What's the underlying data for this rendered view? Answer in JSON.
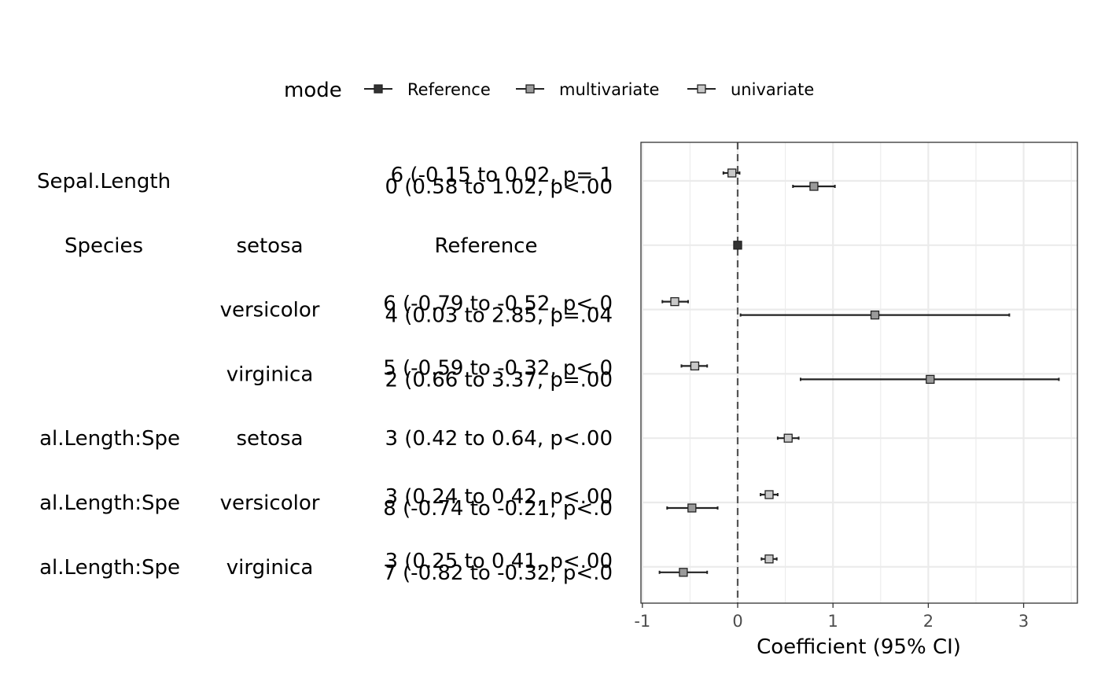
{
  "chart_data": {
    "type": "forest",
    "legend": {
      "title": "mode",
      "position": "top",
      "items": [
        {
          "label": "Reference",
          "fill": "#333333"
        },
        {
          "label": "multivariate",
          "fill": "#9a9a9a"
        },
        {
          "label": "univariate",
          "fill": "#c8c8c8"
        }
      ]
    },
    "xlabel": "Coefficient (95% CI)",
    "xlim": [
      -1,
      3.6
    ],
    "xticks": [
      "-1",
      "0",
      "1",
      "2",
      "3"
    ],
    "reference_line": 0,
    "grid": true,
    "rows": [
      {
        "variable": "Sepal.Length",
        "level": "",
        "texts": [
          "6 (-0.15 to 0.02, p= 1",
          "0 (0.58 to 1.02, p<.00"
        ],
        "points": [
          {
            "mode": "univariate",
            "est": -0.06,
            "lo": -0.15,
            "hi": 0.02
          },
          {
            "mode": "multivariate",
            "est": 0.8,
            "lo": 0.58,
            "hi": 1.02
          }
        ]
      },
      {
        "variable": "Species",
        "level": "setosa",
        "texts": [
          "Reference"
        ],
        "points": [
          {
            "mode": "Reference",
            "est": 0
          }
        ]
      },
      {
        "variable": "",
        "level": "versicolor",
        "texts": [
          "6 (-0.79 to -0.52, p<.0",
          "4 (0.03 to 2.85, p=.04"
        ],
        "points": [
          {
            "mode": "univariate",
            "est": -0.66,
            "lo": -0.79,
            "hi": -0.52
          },
          {
            "mode": "multivariate",
            "est": 1.44,
            "lo": 0.03,
            "hi": 2.85
          }
        ]
      },
      {
        "variable": "",
        "level": "virginica",
        "texts": [
          "5 (-0.59 to -0.32, p<.0",
          "2 (0.66 to 3.37, p=.00"
        ],
        "points": [
          {
            "mode": "univariate",
            "est": -0.45,
            "lo": -0.59,
            "hi": -0.32
          },
          {
            "mode": "multivariate",
            "est": 2.02,
            "lo": 0.66,
            "hi": 3.37
          }
        ]
      },
      {
        "variable": "al.Length:Spe",
        "level": "setosa",
        "texts": [
          "3 (0.42 to 0.64, p<.00"
        ],
        "points": [
          {
            "mode": "univariate",
            "est": 0.53,
            "lo": 0.42,
            "hi": 0.64
          }
        ]
      },
      {
        "variable": "al.Length:Spe",
        "level": "versicolor",
        "texts": [
          "3 (0.24 to 0.42, p<.00",
          "8 (-0.74 to -0.21, p<.0"
        ],
        "points": [
          {
            "mode": "univariate",
            "est": 0.33,
            "lo": 0.24,
            "hi": 0.42
          },
          {
            "mode": "multivariate",
            "est": -0.48,
            "lo": -0.74,
            "hi": -0.21
          }
        ]
      },
      {
        "variable": "al.Length:Spe",
        "level": "virginica",
        "texts": [
          "3 (0.25 to 0.41, p<.00",
          "7 (-0.82 to -0.32, p<.0"
        ],
        "points": [
          {
            "mode": "univariate",
            "est": 0.33,
            "lo": 0.25,
            "hi": 0.41
          },
          {
            "mode": "multivariate",
            "est": -0.57,
            "lo": -0.82,
            "hi": -0.32
          }
        ]
      }
    ]
  }
}
